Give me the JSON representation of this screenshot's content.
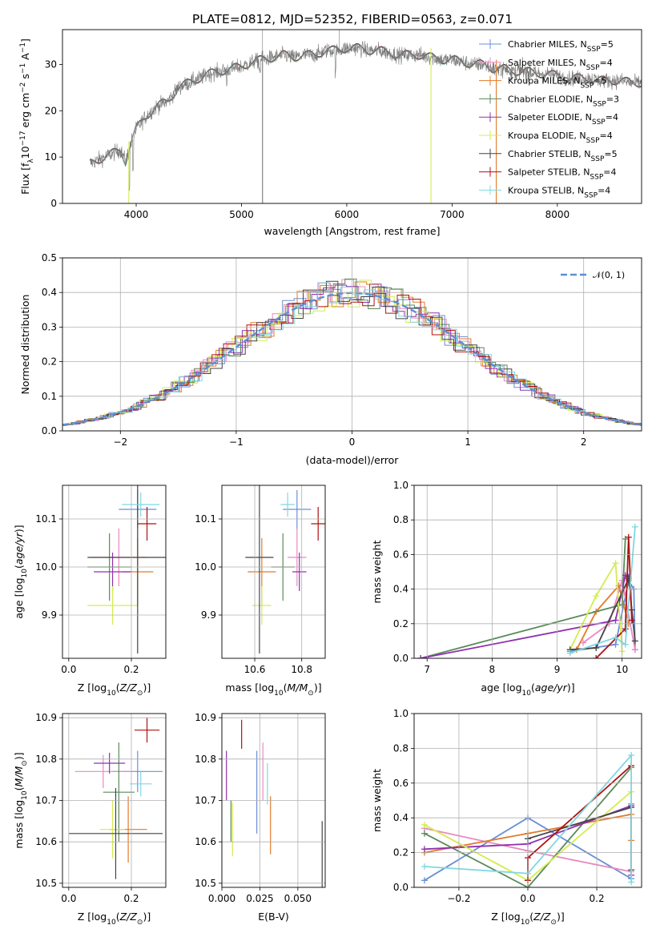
{
  "figure_title": "PLATE=0812, MJD=52352, FIBERID=0563, z=0.071",
  "legend_entries": [
    {
      "label": "Chabrier MILES, N$_{SSP}$=5",
      "base": "Chabrier MILES, N",
      "sub": "SSP",
      "rest": "=5",
      "color": "#6a8fd6"
    },
    {
      "label": "Salpeter MILES, N$_{SSP}$=4",
      "base": "Salpeter MILES, N",
      "sub": "SSP",
      "rest": "=4",
      "color": "#e889c0"
    },
    {
      "label": "Kroupa MILES, N$_{SSP}$=5",
      "base": "Kroupa MILES, N",
      "sub": "SSP",
      "rest": "=5",
      "color": "#e07b2a"
    },
    {
      "label": "Chabrier ELODIE, N$_{SSP}$=3",
      "base": "Chabrier ELODIE, N",
      "sub": "SSP",
      "rest": "=3",
      "color": "#5a8a5a"
    },
    {
      "label": "Salpeter ELODIE, N$_{SSP}$=4",
      "base": "Salpeter ELODIE, N",
      "sub": "SSP",
      "rest": "=4",
      "color": "#9030b0"
    },
    {
      "label": "Kroupa ELODIE, N$_{SSP}$=4",
      "base": "Kroupa ELODIE, N",
      "sub": "SSP",
      "rest": "=4",
      "color": "#d4ec50"
    },
    {
      "label": "Chabrier STELIB, N$_{SSP}$=5",
      "base": "Chabrier STELIB, N",
      "sub": "SSP",
      "rest": "=5",
      "color": "#444444"
    },
    {
      "label": "Salpeter STELIB, N$_{SSP}$=4",
      "base": "Salpeter STELIB, N",
      "sub": "SSP",
      "rest": "=4",
      "color": "#b01010"
    },
    {
      "label": "Kroupa STELIB, N$_{SSP}$=4",
      "base": "Kroupa STELIB, N",
      "sub": "SSP",
      "rest": "=4",
      "color": "#7fd8e0"
    }
  ],
  "chart_data": [
    {
      "id": "spectrum",
      "type": "line",
      "xlabel": "wavelength [Angstrom, rest frame]",
      "ylabel": "Flux [f$_\\lambda$10$^{-17}$ erg cm$^{-2}$ s$^{-1}$ A$^{-1}$]",
      "ylabel_parts": [
        "Flux [f",
        "λ",
        "10",
        "−17",
        " erg cm",
        "−2",
        " s",
        "−1",
        " A",
        "−1",
        "]"
      ],
      "xlim": [
        3300,
        8800
      ],
      "ylim": [
        0,
        37.5
      ],
      "xticks": [
        4000,
        5000,
        6000,
        7000,
        8000
      ],
      "yticks": [
        0,
        10,
        20,
        30
      ],
      "grid": false,
      "legend_position": "top-right",
      "continuum": {
        "x": [
          3550,
          3650,
          3750,
          3850,
          3900,
          3950,
          4000,
          4100,
          4200,
          4300,
          4400,
          4500,
          4600,
          4700,
          4800,
          4900,
          5000,
          5100,
          5200,
          5300,
          5400,
          5500,
          5600,
          5700,
          5800,
          5900,
          6000,
          6100,
          6200,
          6300,
          6400,
          6500,
          6600,
          6700,
          6800,
          6900,
          7000,
          7100,
          7200,
          7300,
          7400,
          7500,
          7600,
          7700,
          7800,
          7900,
          8000,
          8100,
          8200,
          8300,
          8400,
          8500,
          8600,
          8700,
          8800
        ],
        "y": [
          8.5,
          9.5,
          10.5,
          11.5,
          9,
          13,
          16,
          19,
          21,
          22,
          25,
          26,
          27,
          28,
          28.5,
          29,
          29.5,
          30.5,
          31,
          31.5,
          32,
          31.5,
          32,
          32,
          33,
          33,
          33.5,
          33.5,
          33,
          33,
          32.5,
          32,
          32,
          32,
          31.5,
          31,
          31,
          30.5,
          30,
          30,
          29,
          29,
          28.5,
          28.5,
          28,
          28,
          27.5,
          27,
          27,
          27,
          26.5,
          26.5,
          26.5,
          26,
          26
        ]
      },
      "features": [
        {
          "x": 3930,
          "y": 0
        },
        {
          "x": 5200,
          "y": 0
        },
        {
          "x": 6800,
          "y": 0
        },
        {
          "x": 7420,
          "y": 0
        }
      ]
    },
    {
      "id": "residuals",
      "type": "line",
      "xlabel": "(data-model)/error",
      "ylabel": "Normed distribution",
      "xlim": [
        -2.5,
        2.5
      ],
      "ylim": [
        0,
        0.5
      ],
      "xticks": [
        -2,
        -1,
        0,
        1,
        2
      ],
      "ytick_labels": [
        "0.0",
        "0.1",
        "0.2",
        "0.3",
        "0.4",
        "0.5"
      ],
      "grid": true,
      "legend_position": "top-right",
      "legend": {
        "label": "$\\mathcal{N}(0,1)$",
        "text": "𝒩(0, 1)"
      },
      "reference_curve": {
        "mean": 0,
        "std": 1,
        "color": "#5b8fd6"
      },
      "hist_bin_width": 0.1
    },
    {
      "id": "z-age",
      "type": "scatter",
      "xlabel": "Z [log$_{10}$(Z/Z$_\\odot$)]",
      "ylabel": "age  [log$_{10}$(age/yr)]",
      "xlim": [
        -0.02,
        0.31
      ],
      "ylim": [
        9.81,
        10.17
      ],
      "xticks": [
        0.0,
        0.2
      ],
      "ytick_labels": [
        "9.9",
        "10.0",
        "10.1"
      ],
      "points": [
        {
          "x": 0.22,
          "xerr": 0.06,
          "y": 10.12,
          "yerr": 0.04,
          "color": "#6a8fd6"
        },
        {
          "x": 0.16,
          "xerr": 0.09,
          "y": 10.02,
          "yerr": 0.06,
          "color": "#e889c0"
        },
        {
          "x": 0.22,
          "xerr": 0.05,
          "y": 9.99,
          "yerr": 0.07,
          "color": "#e07b2a"
        },
        {
          "x": 0.13,
          "xerr": 0.07,
          "y": 10.0,
          "yerr": 0.07,
          "color": "#5a8a5a"
        },
        {
          "x": 0.14,
          "xerr": 0.06,
          "y": 9.99,
          "yerr": 0.04,
          "color": "#9030b0"
        },
        {
          "x": 0.14,
          "xerr": 0.08,
          "y": 9.92,
          "yerr": 0.04,
          "color": "#d4ec50"
        },
        {
          "x": 0.22,
          "xerr": 0.16,
          "y": 10.02,
          "yerr": 0.2,
          "color": "#444444"
        },
        {
          "x": 0.25,
          "xerr": 0.03,
          "y": 10.09,
          "yerr": 0.035,
          "color": "#b01010"
        },
        {
          "x": 0.23,
          "xerr": 0.06,
          "y": 10.13,
          "yerr": 0.025,
          "color": "#7fd8e0"
        }
      ]
    },
    {
      "id": "mass-age",
      "type": "scatter",
      "xlabel": "mass [log$_{10}$(M/M$_\\odot$)]",
      "ylabel": "",
      "xlim": [
        10.46,
        10.9
      ],
      "ylim": [
        9.81,
        10.17
      ],
      "xticks": [
        10.6,
        10.8
      ],
      "ytick_labels": [
        "9.9",
        "10.0",
        "10.1"
      ],
      "points": [
        {
          "x": 10.78,
          "xerr": 0.06,
          "y": 10.12,
          "yerr": 0.04,
          "color": "#6a8fd6"
        },
        {
          "x": 10.78,
          "xerr": 0.04,
          "y": 10.02,
          "yerr": 0.06,
          "color": "#e889c0"
        },
        {
          "x": 10.63,
          "xerr": 0.06,
          "y": 9.99,
          "yerr": 0.07,
          "color": "#e07b2a"
        },
        {
          "x": 10.72,
          "xerr": 0.05,
          "y": 10.0,
          "yerr": 0.07,
          "color": "#5a8a5a"
        },
        {
          "x": 10.79,
          "xerr": 0.03,
          "y": 9.99,
          "yerr": 0.04,
          "color": "#9030b0"
        },
        {
          "x": 10.63,
          "xerr": 0.04,
          "y": 9.92,
          "yerr": 0.04,
          "color": "#d4ec50"
        },
        {
          "x": 10.62,
          "xerr": 0.06,
          "y": 10.02,
          "yerr": 0.2,
          "color": "#444444"
        },
        {
          "x": 10.87,
          "xerr": 0.03,
          "y": 10.09,
          "yerr": 0.035,
          "color": "#b01010"
        },
        {
          "x": 10.74,
          "xerr": 0.03,
          "y": 10.13,
          "yerr": 0.025,
          "color": "#7fd8e0"
        }
      ]
    },
    {
      "id": "age-weight",
      "type": "line",
      "xlabel": "age  [log$_{10}$(age/yr)]",
      "ylabel": "mass weight",
      "xlim": [
        6.8,
        10.3
      ],
      "ylim": [
        0,
        1.0
      ],
      "xticks": [
        7,
        8,
        9,
        10
      ],
      "ytick_labels": [
        "0.0",
        "0.2",
        "0.4",
        "0.6",
        "0.8",
        "1.0"
      ],
      "grid": true,
      "series": [
        {
          "color": "#6a8fd6",
          "x": [
            9.2,
            9.9,
            10.1,
            10.18,
            10.2
          ],
          "y": [
            0.04,
            0.08,
            0.45,
            0.4,
            0.05
          ]
        },
        {
          "color": "#e889c0",
          "x": [
            9.4,
            9.8,
            10.0,
            10.2
          ],
          "y": [
            0.09,
            0.2,
            0.45,
            0.05
          ]
        },
        {
          "color": "#e07b2a",
          "x": [
            9.3,
            9.6,
            9.95,
            10.1
          ],
          "y": [
            0.05,
            0.27,
            0.42,
            0.2
          ]
        },
        {
          "color": "#5a8a5a",
          "x": [
            6.9,
            10.0,
            10.05
          ],
          "y": [
            0.0,
            0.31,
            0.69
          ]
        },
        {
          "color": "#9030b0",
          "x": [
            6.9,
            9.9,
            10.05,
            10.1
          ],
          "y": [
            0.0,
            0.22,
            0.48,
            0.47
          ]
        },
        {
          "color": "#d4ec50",
          "x": [
            9.2,
            9.6,
            9.9,
            10.0
          ],
          "y": [
            0.05,
            0.36,
            0.55,
            0.04
          ]
        },
        {
          "color": "#444444",
          "x": [
            9.2,
            9.6,
            10.1,
            10.15,
            10.2
          ],
          "y": [
            0.05,
            0.06,
            0.46,
            0.28,
            0.1
          ]
        },
        {
          "color": "#b01010",
          "x": [
            9.6,
            10.05,
            10.1,
            10.15
          ],
          "y": [
            0.0,
            0.17,
            0.7,
            0.22
          ]
        },
        {
          "color": "#7fd8e0",
          "x": [
            9.2,
            9.9,
            10.05,
            10.2
          ],
          "y": [
            0.03,
            0.12,
            0.08,
            0.76
          ]
        }
      ]
    },
    {
      "id": "z-mass",
      "type": "scatter",
      "xlabel": "Z [log$_{10}$(Z/Z$_\\odot$)]",
      "ylabel": "mass [log$_{10}$(M/M$_\\odot$)]",
      "xlim": [
        -0.02,
        0.31
      ],
      "ylim": [
        10.49,
        10.91
      ],
      "xticks": [
        0.0,
        0.2
      ],
      "ytick_labels": [
        "10.5",
        "10.6",
        "10.7",
        "10.8",
        "10.9"
      ],
      "points": [
        {
          "x": 0.22,
          "xerr": 0.08,
          "y": 10.77,
          "yerr": 0.05,
          "color": "#6a8fd6"
        },
        {
          "x": 0.11,
          "xerr": 0.09,
          "y": 10.77,
          "yerr": 0.04,
          "color": "#e889c0"
        },
        {
          "x": 0.19,
          "xerr": 0.06,
          "y": 10.63,
          "yerr": 0.08,
          "color": "#e07b2a"
        },
        {
          "x": 0.16,
          "xerr": 0.05,
          "y": 10.72,
          "yerr": 0.12,
          "color": "#5a8a5a"
        },
        {
          "x": 0.13,
          "xerr": 0.05,
          "y": 10.79,
          "yerr": 0.025,
          "color": "#9030b0"
        },
        {
          "x": 0.14,
          "xerr": 0.04,
          "y": 10.63,
          "yerr": 0.07,
          "color": "#d4ec50"
        },
        {
          "x": 0.15,
          "xerr": 0.15,
          "y": 10.62,
          "yerr": 0.11,
          "color": "#444444"
        },
        {
          "x": 0.25,
          "xerr": 0.04,
          "y": 10.87,
          "yerr": 0.03,
          "color": "#b01010"
        },
        {
          "x": 0.23,
          "xerr": 0.035,
          "y": 10.74,
          "yerr": 0.03,
          "color": "#7fd8e0"
        }
      ]
    },
    {
      "id": "ebv-mass",
      "type": "scatter",
      "xlabel": "E(B-V)",
      "ylabel": "",
      "xlim": [
        0.0,
        0.068
      ],
      "ylim": [
        10.49,
        10.91
      ],
      "xticks": [
        0.0,
        0.025,
        0.05
      ],
      "xtick_labels": [
        "0.000",
        "0.025",
        "0.050"
      ],
      "ytick_labels": [
        "10.5",
        "10.6",
        "10.7",
        "10.8",
        "10.9"
      ],
      "points": [
        {
          "x": 0.023,
          "y": 10.72,
          "yerr": 0.1,
          "color": "#6a8fd6"
        },
        {
          "x": 0.027,
          "y": 10.77,
          "yerr": 0.07,
          "color": "#e889c0"
        },
        {
          "x": 0.032,
          "y": 10.64,
          "yerr": 0.07,
          "color": "#e07b2a"
        },
        {
          "x": 0.03,
          "y": 10.74,
          "yerr": 0.05,
          "color": "#7fd8e0"
        },
        {
          "x": 0.003,
          "y": 10.76,
          "yerr": 0.06,
          "color": "#9030b0"
        },
        {
          "x": 0.007,
          "y": 10.63,
          "yerr": 0.065,
          "color": "#d4ec50"
        },
        {
          "x": 0.066,
          "y": 10.57,
          "yerr": 0.08,
          "color": "#444444"
        },
        {
          "x": 0.013,
          "y": 10.86,
          "yerr": 0.035,
          "color": "#b01010"
        },
        {
          "x": 0.006,
          "y": 10.65,
          "yerr": 0.05,
          "color": "#5a8a5a"
        }
      ]
    },
    {
      "id": "z-weight",
      "type": "line",
      "xlabel": "Z [log$_{10}$(Z/Z$_\\odot$)]",
      "ylabel": "mass weight",
      "xlim": [
        -0.33,
        0.33
      ],
      "ylim": [
        0,
        1.0
      ],
      "xticks": [
        -0.2,
        0.0,
        0.2
      ],
      "xtick_labels": [
        "−0.2",
        "0.0",
        "0.2"
      ],
      "ytick_labels": [
        "0.0",
        "0.2",
        "0.4",
        "0.6",
        "0.8",
        "1.0"
      ],
      "grid": true,
      "series": [
        {
          "color": "#6a8fd6",
          "x": [
            -0.3,
            0.0,
            0.3,
            0.3
          ],
          "y": [
            0.04,
            0.4,
            0.05,
            0.48
          ]
        },
        {
          "color": "#e889c0",
          "x": [
            -0.3,
            0.0,
            0.3
          ],
          "y": [
            0.34,
            0.21,
            0.09
          ]
        },
        {
          "color": "#e07b2a",
          "x": [
            -0.3,
            0.0,
            0.3,
            0.3
          ],
          "y": [
            0.2,
            0.31,
            0.42,
            0.27
          ]
        },
        {
          "color": "#5a8a5a",
          "x": [
            -0.3,
            0.0,
            0.3
          ],
          "y": [
            0.31,
            0.0,
            0.69
          ]
        },
        {
          "color": "#9030b0",
          "x": [
            -0.3,
            0.0,
            0.3,
            0.3
          ],
          "y": [
            0.22,
            0.25,
            0.47,
            0.07
          ]
        },
        {
          "color": "#d4ec50",
          "x": [
            -0.3,
            0.0,
            0.3
          ],
          "y": [
            0.36,
            0.04,
            0.55
          ]
        },
        {
          "color": "#444444",
          "x": [
            0.0,
            0.3,
            0.3
          ],
          "y": [
            0.28,
            0.46,
            0.1
          ]
        },
        {
          "color": "#b01010",
          "x": [
            0.0,
            0.0,
            0.3
          ],
          "y": [
            0.04,
            0.17,
            0.7
          ]
        },
        {
          "color": "#7fd8e0",
          "x": [
            -0.3,
            0.0,
            0.3,
            0.3
          ],
          "y": [
            0.12,
            0.08,
            0.76,
            0.03
          ]
        }
      ]
    }
  ]
}
